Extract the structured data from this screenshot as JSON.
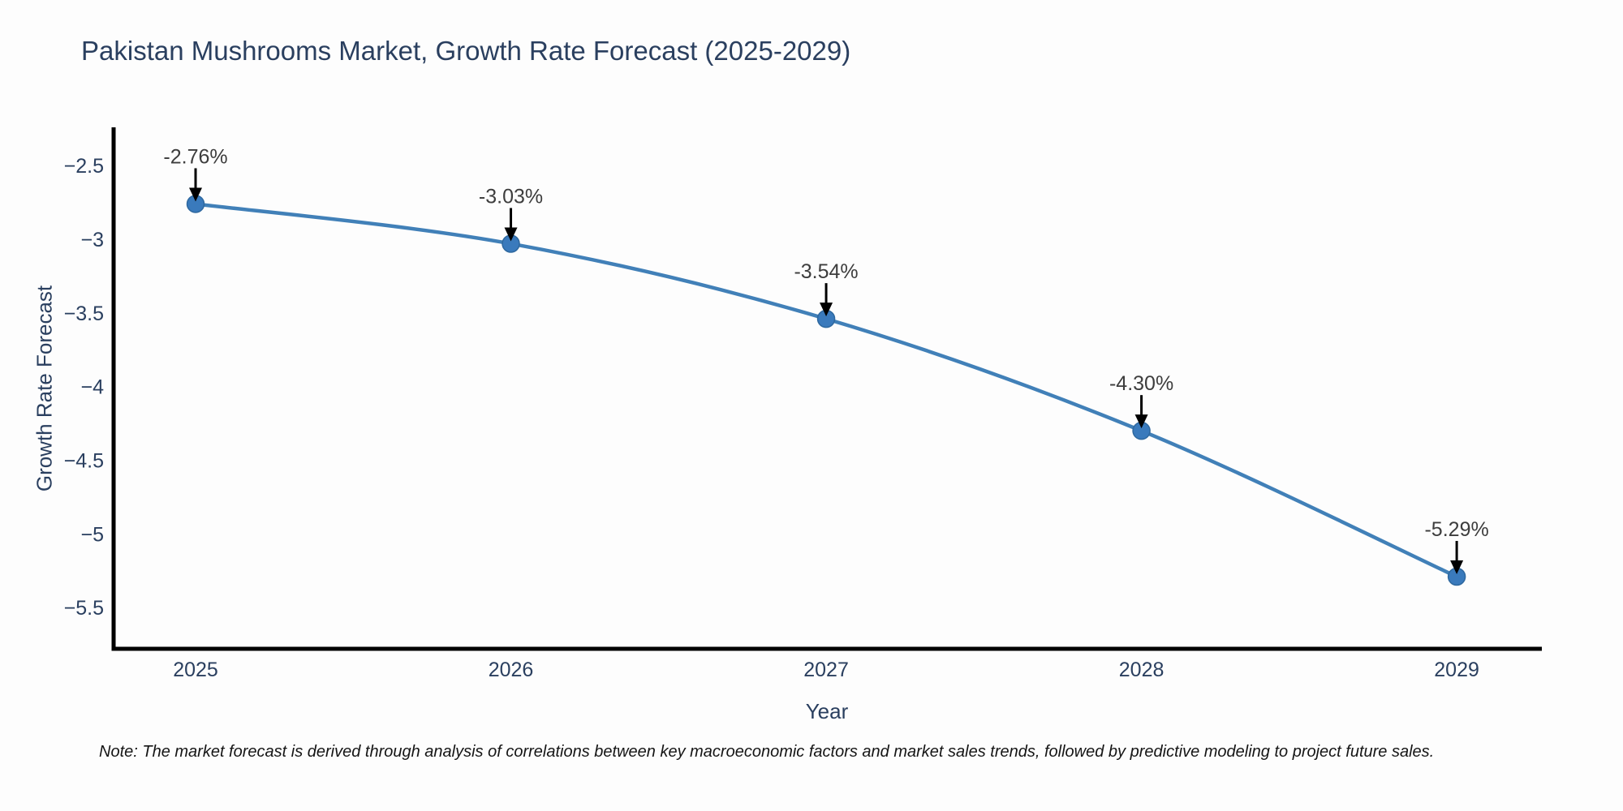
{
  "title": "Pakistan Mushrooms Market, Growth Rate Forecast (2025-2029)",
  "note": "Note: The market forecast is derived through analysis of correlations between key macroeconomic factors and market sales trends, followed by predictive modeling to project future sales.",
  "chart_data": {
    "type": "line",
    "title": "Pakistan Mushrooms Market, Growth Rate Forecast (2025-2029)",
    "xlabel": "Year",
    "ylabel": "Growth Rate Forecast",
    "x": [
      2025,
      2026,
      2027,
      2028,
      2029
    ],
    "series": [
      {
        "name": "Growth Rate Forecast",
        "values": [
          -2.76,
          -3.03,
          -3.54,
          -4.3,
          -5.29
        ]
      }
    ],
    "point_labels": [
      "-2.76%",
      "-3.03%",
      "-3.54%",
      "-4.30%",
      "-5.29%"
    ],
    "x_ticks": [
      "2025",
      "2026",
      "2027",
      "2028",
      "2029"
    ],
    "y_ticks": [
      -2.5,
      -3,
      -3.5,
      -4,
      -4.5,
      -5,
      -5.5
    ],
    "xlim": [
      2024.74,
      2029.27
    ],
    "ylim": [
      -5.78,
      -2.24
    ],
    "grid": false,
    "legend": "none",
    "annotation_style": "arrow-down-to-point",
    "colors": {
      "line": "#4180b8",
      "marker_fill": "#3a7abc",
      "marker_stroke": "#2e689f",
      "axis_line": "#000000",
      "axis_text": "#2a3f5f",
      "annotation_text": "#3d3d3d",
      "arrow": "#000000",
      "title_text": "#2a3f5f",
      "background": "#fdfdfd"
    }
  }
}
